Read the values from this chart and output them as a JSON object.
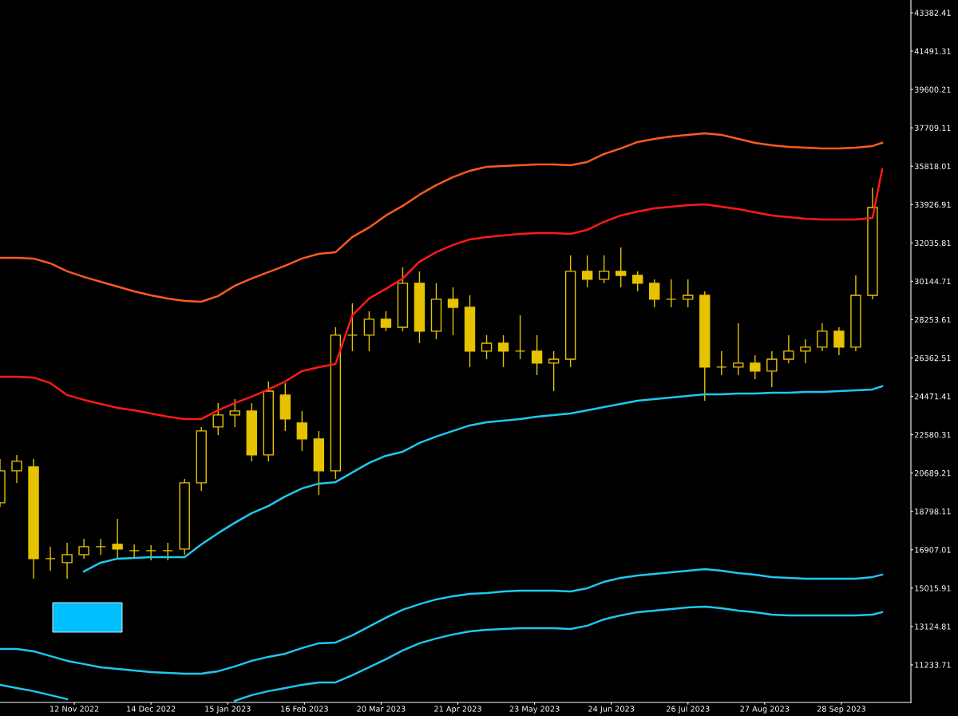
{
  "chart_data": {
    "type": "candlestick",
    "color": "#e6c300",
    "x": [
      "2022-10-12",
      "2022-10-19",
      "2022-10-26",
      "2022-11-02",
      "2022-11-09",
      "2022-11-16",
      "2022-11-23",
      "2022-11-30",
      "2022-12-07",
      "2022-12-14",
      "2022-12-21",
      "2022-12-28",
      "2023-01-04",
      "2023-01-11",
      "2023-01-18",
      "2023-01-25",
      "2023-02-01",
      "2023-02-08",
      "2023-02-15",
      "2023-02-22",
      "2023-03-01",
      "2023-03-08",
      "2023-03-15",
      "2023-03-22",
      "2023-03-29",
      "2023-04-05",
      "2023-04-12",
      "2023-04-19",
      "2023-04-26",
      "2023-05-03",
      "2023-05-10",
      "2023-05-17",
      "2023-05-24",
      "2023-05-31",
      "2023-06-07",
      "2023-06-14",
      "2023-06-21",
      "2023-06-28",
      "2023-07-05",
      "2023-07-12",
      "2023-07-19",
      "2023-07-26",
      "2023-08-02",
      "2023-08-09",
      "2023-08-16",
      "2023-08-23",
      "2023-08-30",
      "2023-09-06",
      "2023-09-13",
      "2023-09-20",
      "2023-09-27",
      "2023-10-04",
      "2023-10-11"
    ],
    "ohlc": [
      [
        19222,
        21386,
        19025,
        20796
      ],
      [
        20796,
        21582,
        20205,
        21268
      ],
      [
        20992,
        21386,
        15483,
        16467
      ],
      [
        16467,
        17057,
        15877,
        16467
      ],
      [
        16270,
        17254,
        15483,
        16664
      ],
      [
        16664,
        17451,
        16467,
        17057
      ],
      [
        17057,
        17451,
        16664,
        17057
      ],
      [
        17175,
        18434,
        16467,
        16939
      ],
      [
        16861,
        17175,
        16467,
        16861
      ],
      [
        16861,
        17136,
        16380,
        16861
      ],
      [
        16861,
        17254,
        16380,
        16861
      ],
      [
        16939,
        20402,
        16664,
        20205
      ],
      [
        20205,
        22960,
        19812,
        22763
      ],
      [
        22960,
        24140,
        22566,
        23550
      ],
      [
        23550,
        24337,
        22960,
        23747
      ],
      [
        23747,
        24140,
        21268,
        21582
      ],
      [
        21582,
        25203,
        21268,
        24730
      ],
      [
        24534,
        25124,
        22763,
        23353
      ],
      [
        23157,
        23747,
        21779,
        22369
      ],
      [
        22369,
        22763,
        19615,
        20796
      ],
      [
        20796,
        27878,
        20402,
        27485
      ],
      [
        27485,
        29059,
        26698,
        27485
      ],
      [
        27485,
        28665,
        26698,
        28272
      ],
      [
        28272,
        28665,
        27682,
        27878
      ],
      [
        27878,
        30830,
        27682,
        30043
      ],
      [
        30043,
        30633,
        27091,
        27682
      ],
      [
        27682,
        30043,
        27288,
        29256
      ],
      [
        29256,
        29846,
        27485,
        28862
      ],
      [
        28862,
        29452,
        25911,
        26698
      ],
      [
        26698,
        27485,
        26304,
        27091
      ],
      [
        27091,
        27485,
        25911,
        26698
      ],
      [
        26698,
        28469,
        26304,
        26698
      ],
      [
        26698,
        27485,
        25517,
        26108
      ],
      [
        26108,
        26698,
        24730,
        26304
      ],
      [
        26304,
        31420,
        25911,
        30633
      ],
      [
        30633,
        31420,
        29846,
        30240
      ],
      [
        30240,
        31420,
        30043,
        30633
      ],
      [
        30633,
        31813,
        29846,
        30436
      ],
      [
        30436,
        30633,
        29649,
        30043
      ],
      [
        30043,
        30240,
        28862,
        29256
      ],
      [
        29256,
        30240,
        28862,
        29256
      ],
      [
        29256,
        30240,
        28862,
        29452
      ],
      [
        29452,
        29649,
        24258,
        25911
      ],
      [
        25911,
        26698,
        25517,
        25911
      ],
      [
        25911,
        28075,
        25517,
        26108
      ],
      [
        26108,
        26501,
        25321,
        25714
      ],
      [
        25714,
        26698,
        24927,
        26304
      ],
      [
        26304,
        27485,
        26108,
        26698
      ],
      [
        26698,
        27288,
        26108,
        26895
      ],
      [
        26895,
        28075,
        26698,
        27682
      ],
      [
        27682,
        27878,
        26501,
        26895
      ],
      [
        26895,
        30436,
        26698,
        29452
      ],
      [
        29452,
        34765,
        29256,
        33781
      ]
    ],
    "series": [
      {
        "type": "line",
        "color": "#ff5a1f",
        "x": [
          "2022-10-12",
          "2022-10-19",
          "2022-10-26",
          "2022-11-02",
          "2022-11-09",
          "2022-11-16",
          "2022-11-23",
          "2022-11-30",
          "2022-12-07",
          "2022-12-14",
          "2022-12-21",
          "2022-12-28",
          "2023-01-04",
          "2023-01-11",
          "2023-01-18",
          "2023-01-25",
          "2023-02-01",
          "2023-02-08",
          "2023-02-15",
          "2023-02-22",
          "2023-03-01",
          "2023-03-08",
          "2023-03-15",
          "2023-03-22",
          "2023-03-29",
          "2023-04-05",
          "2023-04-12",
          "2023-04-19",
          "2023-04-26",
          "2023-05-03",
          "2023-05-10",
          "2023-05-17",
          "2023-05-24",
          "2023-05-31",
          "2023-06-07",
          "2023-06-14",
          "2023-06-21",
          "2023-06-28",
          "2023-07-05",
          "2023-07-12",
          "2023-07-19",
          "2023-07-26",
          "2023-08-02",
          "2023-08-09",
          "2023-08-16",
          "2023-08-23",
          "2023-08-30",
          "2023-09-06",
          "2023-09-13",
          "2023-09-20",
          "2023-09-27",
          "2023-10-04",
          "2023-10-11",
          "2023-10-15"
        ],
        "values": [
          31302,
          31302,
          31263,
          31026,
          30633,
          30358,
          30121,
          29885,
          29649,
          29452,
          29295,
          29177,
          29138,
          29413,
          29925,
          30279,
          30594,
          30908,
          31263,
          31499,
          31577,
          32325,
          32797,
          33387,
          33860,
          34411,
          34883,
          35276,
          35591,
          35788,
          35827,
          35867,
          35906,
          35906,
          35867,
          36024,
          36417,
          36693,
          37008,
          37165,
          37283,
          37362,
          37441,
          37362,
          37165,
          36968,
          36850,
          36772,
          36732,
          36693,
          36693,
          36732,
          36811,
          36968
        ]
      },
      {
        "type": "line",
        "color": "#ff1a1a",
        "x": [
          "2022-10-12",
          "2022-10-19",
          "2022-10-26",
          "2022-11-02",
          "2022-11-09",
          "2022-11-16",
          "2022-11-23",
          "2022-11-30",
          "2022-12-07",
          "2022-12-14",
          "2022-12-21",
          "2022-12-28",
          "2023-01-04",
          "2023-01-11",
          "2023-01-18",
          "2023-01-25",
          "2023-02-01",
          "2023-02-08",
          "2023-02-15",
          "2023-02-22",
          "2023-03-01",
          "2023-03-08",
          "2023-03-15",
          "2023-03-22",
          "2023-03-29",
          "2023-04-05",
          "2023-04-12",
          "2023-04-19",
          "2023-04-26",
          "2023-05-03",
          "2023-05-10",
          "2023-05-17",
          "2023-05-24",
          "2023-05-31",
          "2023-06-07",
          "2023-06-14",
          "2023-06-21",
          "2023-06-28",
          "2023-07-05",
          "2023-07-12",
          "2023-07-19",
          "2023-07-26",
          "2023-08-02",
          "2023-08-09",
          "2023-08-16",
          "2023-08-23",
          "2023-08-30",
          "2023-09-06",
          "2023-09-13",
          "2023-09-20",
          "2023-09-27",
          "2023-10-04",
          "2023-10-11",
          "2023-10-15"
        ],
        "values": [
          25439,
          25439,
          25399,
          25124,
          24534,
          24298,
          24101,
          23904,
          23786,
          23629,
          23471,
          23353,
          23353,
          23786,
          24140,
          24455,
          24809,
          25203,
          25714,
          25911,
          26068,
          28469,
          29295,
          29767,
          30279,
          31105,
          31577,
          31932,
          32207,
          32325,
          32404,
          32482,
          32522,
          32522,
          32482,
          32679,
          33073,
          33387,
          33584,
          33742,
          33820,
          33899,
          33938,
          33820,
          33702,
          33545,
          33387,
          33309,
          33230,
          33191,
          33191,
          33191,
          33269,
          35670
        ]
      },
      {
        "type": "line",
        "color": "#1ec8f0",
        "x": [
          "2022-11-16",
          "2022-11-23",
          "2022-11-30",
          "2022-12-07",
          "2022-12-14",
          "2022-12-21",
          "2022-12-28",
          "2023-01-04",
          "2023-01-11",
          "2023-01-18",
          "2023-01-25",
          "2023-02-01",
          "2023-02-08",
          "2023-02-15",
          "2023-02-22",
          "2023-03-01",
          "2023-03-08",
          "2023-03-15",
          "2023-03-22",
          "2023-03-29",
          "2023-04-05",
          "2023-04-12",
          "2023-04-19",
          "2023-04-26",
          "2023-05-03",
          "2023-05-10",
          "2023-05-17",
          "2023-05-24",
          "2023-05-31",
          "2023-06-07",
          "2023-06-14",
          "2023-06-21",
          "2023-06-28",
          "2023-07-05",
          "2023-07-12",
          "2023-07-19",
          "2023-07-26",
          "2023-08-02",
          "2023-08-09",
          "2023-08-16",
          "2023-08-23",
          "2023-08-30",
          "2023-09-06",
          "2023-09-13",
          "2023-09-20",
          "2023-09-27",
          "2023-10-04",
          "2023-10-11",
          "2023-10-15"
        ],
        "values": [
          15837,
          16270,
          16467,
          16506,
          16546,
          16546,
          16546,
          17175,
          17726,
          18238,
          18710,
          19064,
          19536,
          19930,
          20166,
          20245,
          20717,
          21189,
          21543,
          21740,
          22173,
          22488,
          22763,
          23038,
          23196,
          23275,
          23353,
          23471,
          23550,
          23629,
          23786,
          23943,
          24101,
          24258,
          24337,
          24416,
          24494,
          24573,
          24573,
          24612,
          24612,
          24652,
          24652,
          24691,
          24691,
          24730,
          24770,
          24809,
          24967
        ]
      },
      {
        "type": "line",
        "color": "#1ec8f0",
        "x": [
          "2022-10-12",
          "2022-10-19",
          "2022-10-26",
          "2022-11-02",
          "2022-11-09",
          "2022-11-16",
          "2022-11-23",
          "2022-11-30",
          "2022-12-07",
          "2022-12-14",
          "2022-12-21",
          "2022-12-28",
          "2023-01-04",
          "2023-01-11",
          "2023-01-18",
          "2023-01-25",
          "2023-02-01",
          "2023-02-08",
          "2023-02-15",
          "2023-02-22",
          "2023-03-01",
          "2023-03-08",
          "2023-03-15",
          "2023-03-22",
          "2023-03-29",
          "2023-04-05",
          "2023-04-12",
          "2023-04-19",
          "2023-04-26",
          "2023-05-03",
          "2023-05-10",
          "2023-05-17",
          "2023-05-24",
          "2023-05-31",
          "2023-06-07",
          "2023-06-14",
          "2023-06-21",
          "2023-06-28",
          "2023-07-05",
          "2023-07-12",
          "2023-07-19",
          "2023-07-26",
          "2023-08-02",
          "2023-08-09",
          "2023-08-16",
          "2023-08-23",
          "2023-08-30",
          "2023-09-06",
          "2023-09-13",
          "2023-09-20",
          "2023-09-27",
          "2023-10-04",
          "2023-10-11",
          "2023-10-15"
        ],
        "values": [
          12020,
          12020,
          11902,
          11666,
          11430,
          11273,
          11115,
          11037,
          10958,
          10879,
          10840,
          10801,
          10801,
          10919,
          11155,
          11430,
          11627,
          11784,
          12060,
          12296,
          12335,
          12689,
          13122,
          13555,
          13949,
          14224,
          14460,
          14618,
          14736,
          14775,
          14854,
          14893,
          14893,
          14893,
          14854,
          15011,
          15326,
          15523,
          15641,
          15719,
          15798,
          15877,
          15955,
          15877,
          15759,
          15680,
          15562,
          15523,
          15483,
          15483,
          15483,
          15483,
          15562,
          15680
        ]
      },
      {
        "type": "line",
        "color": "#1ec8f0",
        "x": [
          "2022-10-12",
          "2022-10-19",
          "2022-10-26",
          "2022-11-02",
          "2022-11-09",
          "2022-11-16",
          "2022-11-23",
          "2022-11-30",
          "2022-12-07",
          "2022-12-14",
          "2022-12-21",
          "2022-12-28",
          "2023-01-04",
          "2023-01-11",
          "2023-01-18",
          "2023-01-25",
          "2023-02-01",
          "2023-02-08",
          "2023-02-15",
          "2023-02-22",
          "2023-03-01",
          "2023-03-08",
          "2023-03-15",
          "2023-03-22",
          "2023-03-29",
          "2023-04-05",
          "2023-04-12",
          "2023-04-19",
          "2023-04-26",
          "2023-05-03",
          "2023-05-10",
          "2023-05-17",
          "2023-05-24",
          "2023-05-31",
          "2023-06-07",
          "2023-06-14",
          "2023-06-21",
          "2023-06-28",
          "2023-07-05",
          "2023-07-12",
          "2023-07-19",
          "2023-07-26",
          "2023-08-02",
          "2023-08-09",
          "2023-08-16",
          "2023-08-23",
          "2023-08-30",
          "2023-09-06",
          "2023-09-13",
          "2023-09-20",
          "2023-09-27",
          "2023-10-04",
          "2023-10-11",
          "2023-10-15"
        ],
        "values": [
          10250,
          10092,
          9935,
          9738,
          9541,
          null,
          null,
          null,
          null,
          null,
          null,
          null,
          null,
          null,
          9463,
          9738,
          9935,
          10092,
          10250,
          10368,
          10368,
          10722,
          11115,
          11509,
          11942,
          12296,
          12532,
          12729,
          12886,
          12965,
          13004,
          13044,
          13044,
          13044,
          13004,
          13162,
          13476,
          13673,
          13831,
          13909,
          13988,
          14067,
          14106,
          14027,
          13909,
          13831,
          13712,
          13673,
          13673,
          13673,
          13673,
          13673,
          13712,
          13831
        ]
      }
    ],
    "xlim": [
      "2022-10-12",
      "2023-10-27"
    ],
    "xticks": [
      {
        "value": "2022-11-12",
        "label": "12 Nov 2022"
      },
      {
        "value": "2022-12-14",
        "label": "14 Dec 2022"
      },
      {
        "value": "2023-01-15",
        "label": "15 Jan 2023"
      },
      {
        "value": "2023-02-16",
        "label": "16 Feb 2023"
      },
      {
        "value": "2023-03-20",
        "label": "20 Mar 2023"
      },
      {
        "value": "2023-04-21",
        "label": "21 Apr 2023"
      },
      {
        "value": "2023-05-23",
        "label": "23 May 2023"
      },
      {
        "value": "2023-06-24",
        "label": "24 Jun 2023"
      },
      {
        "value": "2023-07-26",
        "label": "26 Jul 2023"
      },
      {
        "value": "2023-08-27",
        "label": "27 Aug 2023"
      },
      {
        "value": "2023-09-28",
        "label": "28 Sep 2023"
      }
    ],
    "ylim": [
      9380,
      44010
    ],
    "yticks": [
      11233.71,
      13124.81,
      15015.91,
      16907.01,
      18798.11,
      20689.21,
      22580.31,
      24471.41,
      26362.51,
      28253.61,
      30144.71,
      32035.81,
      33926.91,
      35818.01,
      37709.11,
      39600.21,
      41491.31,
      43382.41
    ],
    "grid": false
  }
}
